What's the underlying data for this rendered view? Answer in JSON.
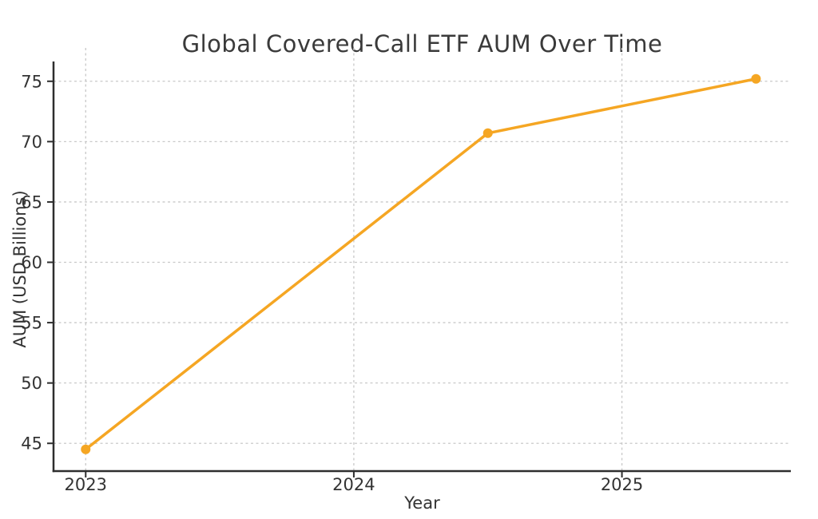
{
  "figure": {
    "background": "#FFFFFF"
  },
  "chart_data": {
    "type": "line",
    "title": "Global Covered-Call ETF AUM Over Time",
    "xlabel": "Year",
    "ylabel": "AUM (USD Billions)",
    "x": [
      2023,
      2024.5,
      2025.5
    ],
    "values": [
      44.5,
      70.7,
      75.2
    ],
    "xlim": [
      2022.88,
      2025.63
    ],
    "ylim": [
      42.7,
      77.5
    ],
    "xticks": {
      "values": [
        2023,
        2024,
        2025
      ],
      "labels": [
        "2023",
        "2024",
        "2025"
      ]
    },
    "yticks": {
      "values": [
        45,
        50,
        55,
        60,
        65,
        70,
        75
      ],
      "labels": [
        "45",
        "50",
        "55",
        "60",
        "65",
        "70",
        "75"
      ]
    },
    "grid": "both-dashed",
    "legend": "none",
    "marker": "circle",
    "colors": {
      "line": "#F5A623",
      "grid": "#C9C9C9",
      "axis": "#2E2E2E",
      "tick_text": "#333333",
      "title_text": "#3A3A3A",
      "background": "#FFFFFF"
    }
  }
}
